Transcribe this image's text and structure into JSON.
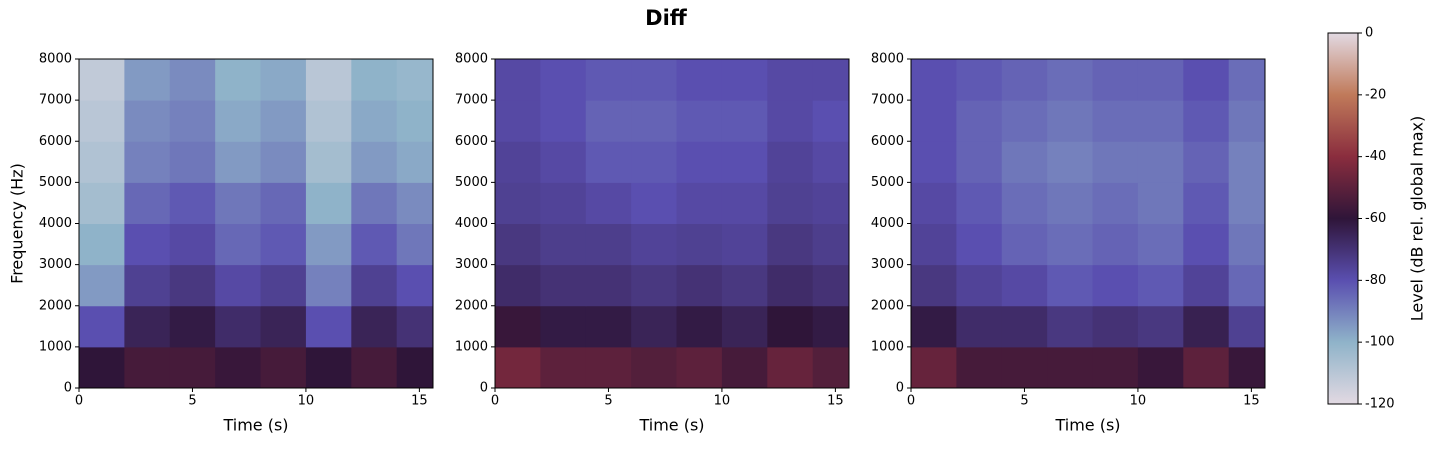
{
  "title": "Diff",
  "colorbar": {
    "label": "Level (dB rel. global max)",
    "lim": [
      -120,
      0
    ],
    "ticks": [
      0,
      -20,
      -40,
      -60,
      -80,
      -100,
      -120
    ],
    "colors": [
      "#e2d9e2",
      "#8fb3c9",
      "#5a4fb0",
      "#2f1539",
      "#8a2d3e",
      "#c07a5a",
      "#e2d9e2"
    ]
  },
  "chart_data": [
    {
      "type": "heatmap",
      "xlabel": "Time (s)",
      "ylabel": "Frequency (Hz)",
      "x_bins": [
        0,
        2,
        4,
        6,
        8,
        10,
        12,
        14,
        15.6
      ],
      "y_bins": [
        0,
        1000,
        2000,
        3000,
        4000,
        5000,
        6000,
        7000,
        8000
      ],
      "xlim": [
        0,
        15.6
      ],
      "ylim": [
        0,
        8000
      ],
      "xticks": [
        0,
        5,
        10,
        15
      ],
      "yticks": [
        0,
        1000,
        2000,
        3000,
        4000,
        5000,
        6000,
        7000,
        8000
      ],
      "z": [
        [
          -60,
          -55,
          -55,
          -58,
          -55,
          -60,
          -55,
          -60
        ],
        [
          -80,
          -65,
          -62,
          -68,
          -65,
          -80,
          -65,
          -70
        ],
        [
          -95,
          -75,
          -72,
          -78,
          -75,
          -90,
          -75,
          -80
        ],
        [
          -100,
          -80,
          -78,
          -85,
          -82,
          -95,
          -82,
          -88
        ],
        [
          -105,
          -85,
          -82,
          -88,
          -85,
          -100,
          -88,
          -92
        ],
        [
          -108,
          -90,
          -88,
          -95,
          -92,
          -105,
          -95,
          -98
        ],
        [
          -110,
          -92,
          -90,
          -98,
          -95,
          -108,
          -98,
          -100
        ],
        [
          -112,
          -95,
          -92,
          -100,
          -98,
          -110,
          -100,
          -102
        ]
      ]
    },
    {
      "type": "heatmap",
      "xlabel": "Time (s)",
      "x_bins": [
        0,
        2,
        4,
        6,
        8,
        10,
        12,
        14,
        15.6
      ],
      "y_bins": [
        0,
        1000,
        2000,
        3000,
        4000,
        5000,
        6000,
        7000,
        8000
      ],
      "xlim": [
        0,
        15.6
      ],
      "ylim": [
        0,
        8000
      ],
      "xticks": [
        0,
        5,
        10,
        15
      ],
      "yticks": [
        0,
        1000,
        2000,
        3000,
        4000,
        5000,
        6000,
        7000,
        8000
      ],
      "z": [
        [
          -45,
          -50,
          -50,
          -52,
          -50,
          -55,
          -48,
          -52
        ],
        [
          -58,
          -62,
          -62,
          -65,
          -62,
          -65,
          -60,
          -62
        ],
        [
          -68,
          -70,
          -70,
          -72,
          -70,
          -72,
          -68,
          -70
        ],
        [
          -72,
          -74,
          -74,
          -76,
          -75,
          -76,
          -72,
          -74
        ],
        [
          -75,
          -76,
          -78,
          -80,
          -78,
          -78,
          -75,
          -76
        ],
        [
          -76,
          -78,
          -82,
          -82,
          -80,
          -80,
          -76,
          -78
        ],
        [
          -78,
          -80,
          -84,
          -84,
          -82,
          -82,
          -78,
          -80
        ],
        [
          -78,
          -80,
          -82,
          -82,
          -80,
          -80,
          -78,
          -78
        ]
      ]
    },
    {
      "type": "heatmap",
      "xlabel": "Time (s)",
      "x_bins": [
        0,
        2,
        4,
        6,
        8,
        10,
        12,
        14,
        15.6
      ],
      "y_bins": [
        0,
        1000,
        2000,
        3000,
        4000,
        5000,
        6000,
        7000,
        8000
      ],
      "xlim": [
        0,
        15.6
      ],
      "ylim": [
        0,
        8000
      ],
      "xticks": [
        0,
        5,
        10,
        15
      ],
      "yticks": [
        0,
        1000,
        2000,
        3000,
        4000,
        5000,
        6000,
        7000,
        8000
      ],
      "z": [
        [
          -48,
          -55,
          -55,
          -55,
          -55,
          -58,
          -50,
          -58
        ],
        [
          -62,
          -68,
          -68,
          -72,
          -70,
          -72,
          -64,
          -75
        ],
        [
          -72,
          -76,
          -78,
          -82,
          -80,
          -82,
          -76,
          -85
        ],
        [
          -76,
          -80,
          -84,
          -86,
          -84,
          -86,
          -80,
          -88
        ],
        [
          -78,
          -82,
          -86,
          -88,
          -86,
          -88,
          -82,
          -90
        ],
        [
          -80,
          -84,
          -88,
          -90,
          -88,
          -88,
          -84,
          -90
        ],
        [
          -80,
          -84,
          -86,
          -88,
          -86,
          -86,
          -82,
          -88
        ],
        [
          -80,
          -82,
          -84,
          -86,
          -84,
          -84,
          -80,
          -86
        ]
      ]
    }
  ]
}
